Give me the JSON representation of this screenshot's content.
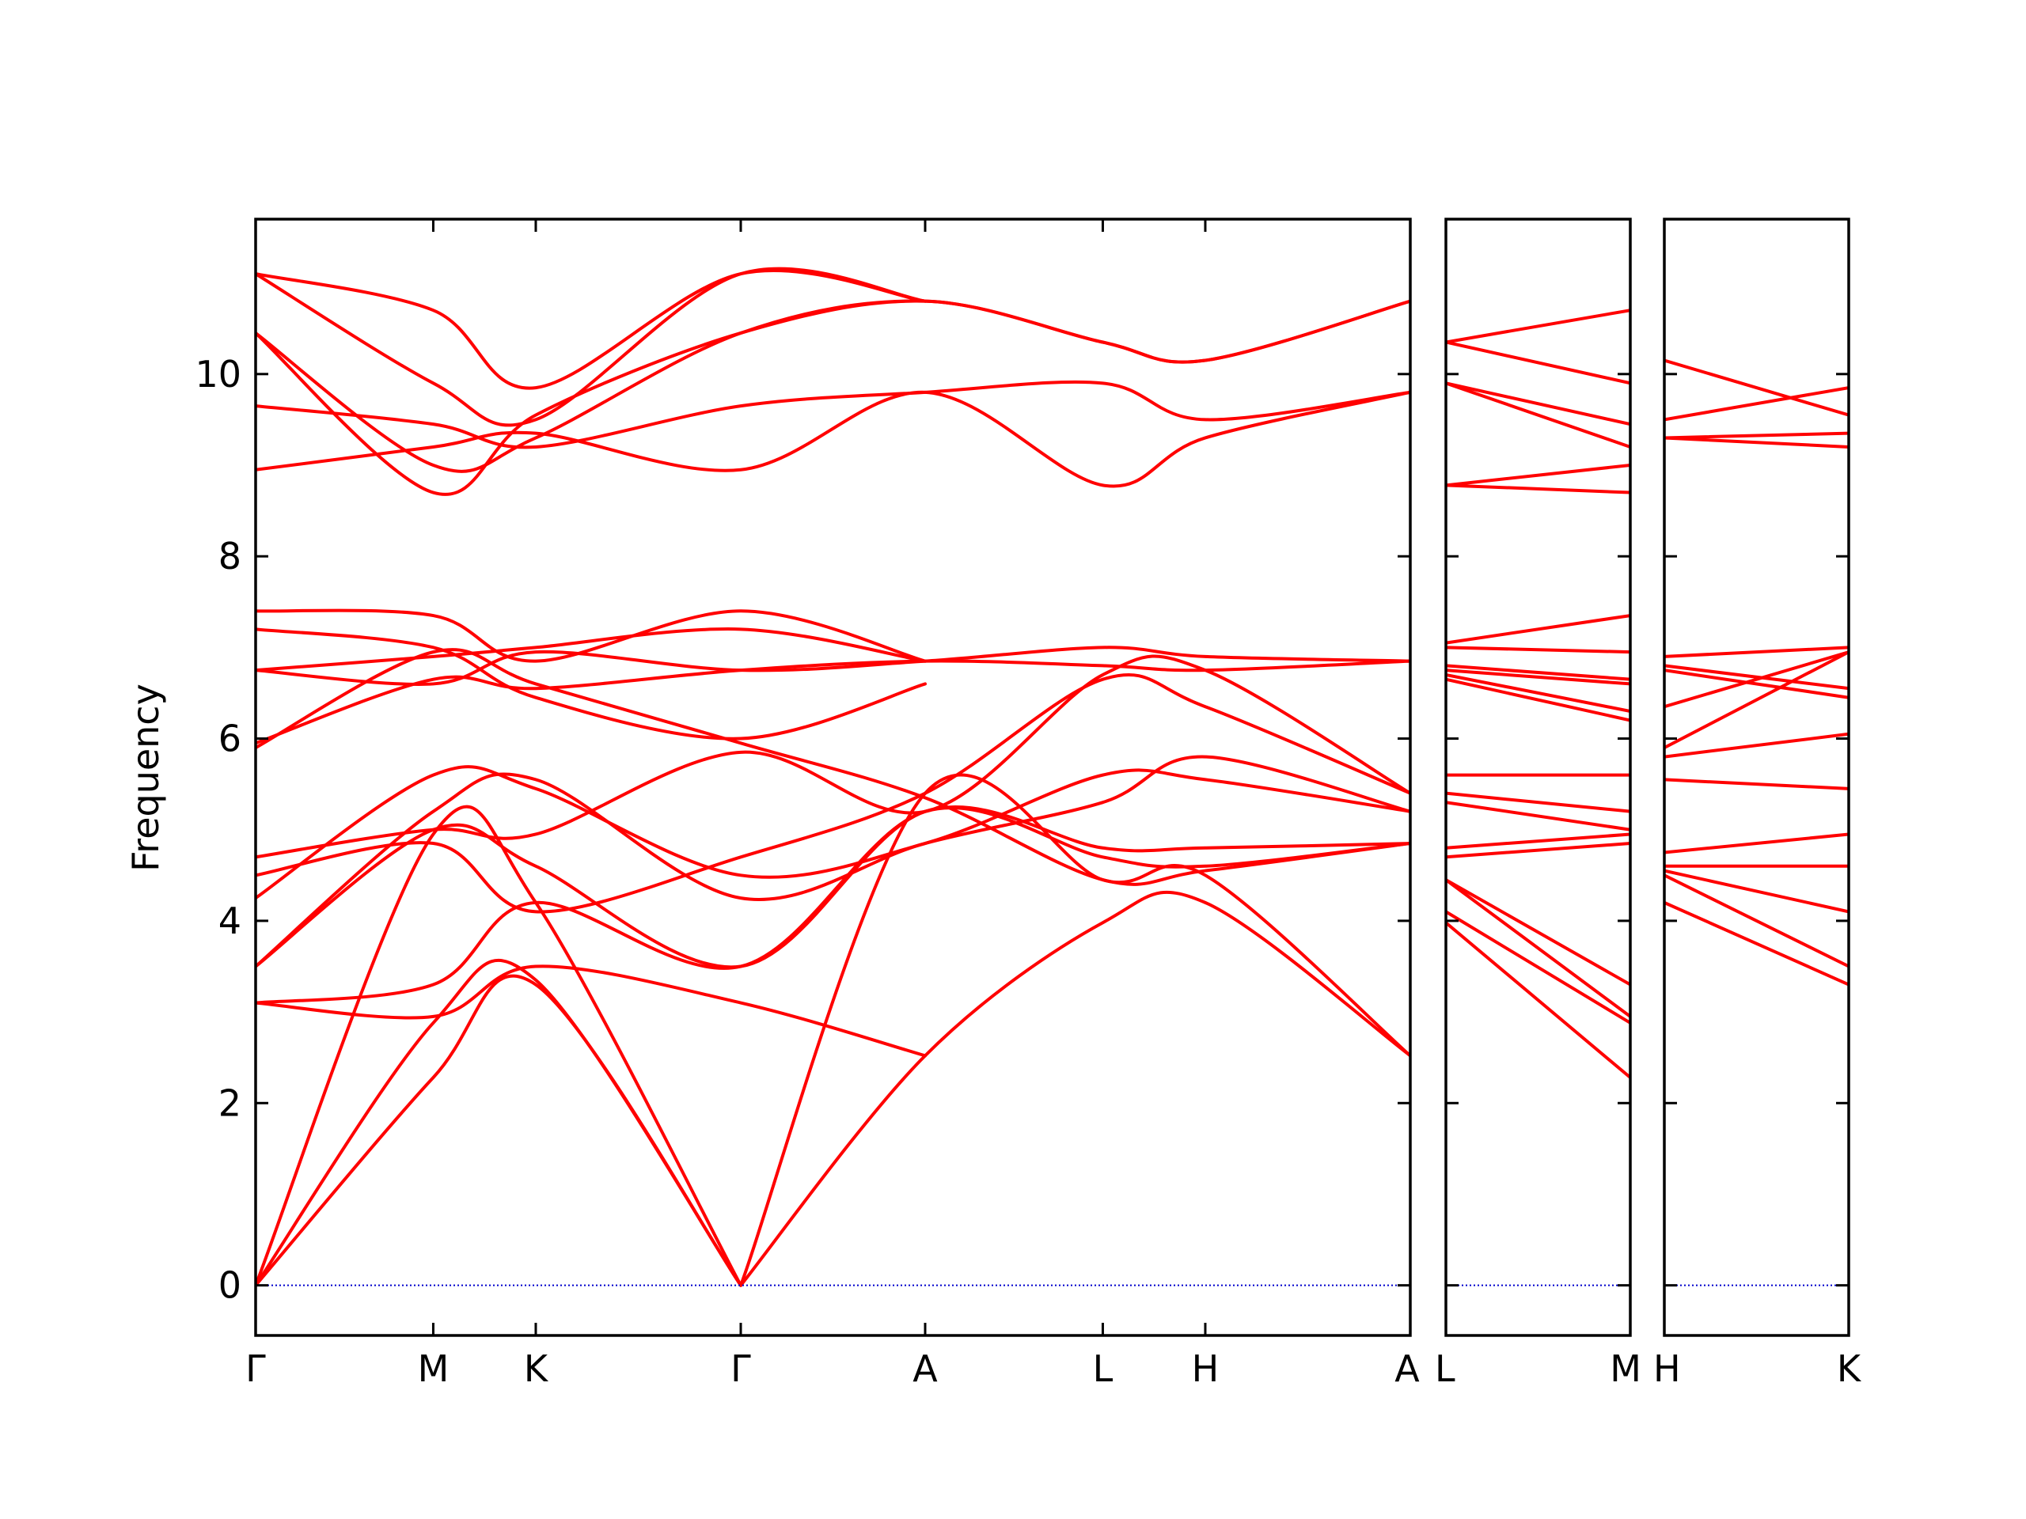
{
  "chart_data": {
    "type": "line",
    "ylabel": "Frequency",
    "ylim": [
      -0.55,
      11.7
    ],
    "yticks": [
      0,
      2,
      4,
      6,
      8,
      10
    ],
    "line_color": "#ff0000",
    "zero_line_color": "#0000cc",
    "panels": [
      {
        "id": "main",
        "xlim": [
          0,
          8
        ],
        "x_ticks": [
          {
            "x": 0,
            "label": "Γ"
          },
          {
            "x": 1,
            "label": "M"
          },
          {
            "x": 1.577,
            "label": "K"
          },
          {
            "x": 2.731,
            "label": "Γ"
          },
          {
            "x": 3.769,
            "label": "A"
          },
          {
            "x": 4.769,
            "label": "L"
          },
          {
            "x": 5.346,
            "label": "H"
          },
          {
            "x": 6.5,
            "label": "A"
          }
        ],
        "bands": [
          {
            "x": [
              0,
              1,
              1.577,
              2.731
            ],
            "y": [
              0,
              2.28,
              3.3,
              0
            ]
          },
          {
            "x": [
              0,
              1,
              1.577,
              2.731
            ],
            "y": [
              0,
              2.88,
              3.35,
              0
            ]
          },
          {
            "x": [
              0,
              1,
              1.577,
              2.731
            ],
            "y": [
              0,
              4.95,
              4.2,
              0
            ]
          },
          {
            "x": [
              2.731,
              3.769,
              4.769,
              5.346,
              6.5
            ],
            "y": [
              0,
              2.52,
              3.98,
              4.2,
              2.52
            ]
          },
          {
            "x": [
              2.731,
              3.769,
              4.769,
              5.346,
              6.5
            ],
            "y": [
              0,
              5.4,
              4.45,
              4.5,
              2.52
            ]
          },
          {
            "x": [
              0,
              1,
              1.577,
              2.731,
              3.769
            ],
            "y": [
              3.1,
              2.95,
              3.5,
              3.1,
              2.52
            ]
          },
          {
            "x": [
              0,
              1,
              1.577,
              2.731,
              3.769,
              4.769,
              5.346,
              6.5
            ],
            "y": [
              3.1,
              3.3,
              4.2,
              3.5,
              5.2,
              4.7,
              4.6,
              4.85
            ]
          },
          {
            "x": [
              0,
              1,
              1.577,
              2.731,
              3.769,
              4.769,
              5.346,
              6.5
            ],
            "y": [
              3.5,
              5.0,
              4.6,
              3.5,
              5.2,
              4.8,
              4.8,
              4.85
            ]
          },
          {
            "x": [
              0,
              1,
              1.577,
              2.731,
              3.769,
              4.769,
              5.346,
              6.5
            ],
            "y": [
              3.5,
              5.2,
              5.55,
              4.25,
              4.85,
              5.3,
              5.8,
              5.2
            ]
          },
          {
            "x": [
              0,
              1,
              1.577,
              2.731,
              3.769,
              4.769,
              5.346,
              6.5
            ],
            "y": [
              4.25,
              5.6,
              5.45,
              4.5,
              4.85,
              5.6,
              5.55,
              5.2
            ]
          },
          {
            "x": [
              0,
              1,
              1.577,
              2.731,
              3.769,
              4.769,
              5.346,
              6.5
            ],
            "y": [
              4.5,
              4.85,
              4.1,
              4.7,
              5.4,
              6.65,
              6.35,
              5.4
            ]
          },
          {
            "x": [
              0,
              1,
              1.577,
              2.731,
              3.769,
              4.769,
              5.346,
              6.5
            ],
            "y": [
              4.7,
              5.0,
              4.95,
              5.85,
              5.2,
              6.7,
              6.75,
              5.4
            ]
          },
          {
            "x": [
              0,
              1,
              1.577,
              2.731,
              3.769,
              4.769,
              5.346,
              6.5
            ],
            "y": [
              5.9,
              6.95,
              6.6,
              5.95,
              5.35,
              4.45,
              4.55,
              4.85
            ]
          },
          {
            "x": [
              0,
              1,
              1.577,
              2.731,
              3.769,
              4.769,
              5.346,
              6.5
            ],
            "y": [
              5.95,
              6.65,
              6.55,
              6.75,
              6.85,
              6.8,
              6.75,
              6.85
            ]
          },
          {
            "x": [
              0,
              1,
              1.577,
              2.731,
              3.769,
              4.769,
              5.346,
              6.5
            ],
            "y": [
              6.75,
              6.6,
              6.95,
              6.75,
              6.85,
              7.0,
              6.9,
              6.85
            ]
          },
          {
            "x": [
              0,
              1,
              1.577,
              2.731,
              3.769
            ],
            "y": [
              6.75,
              6.9,
              7.0,
              7.2,
              6.85
            ]
          },
          {
            "x": [
              0,
              1,
              1.577,
              2.731,
              3.769
            ],
            "y": [
              7.2,
              7.0,
              6.45,
              6.0,
              6.6
            ]
          },
          {
            "x": [
              0,
              1,
              1.577,
              2.731,
              3.769
            ],
            "y": [
              7.4,
              7.35,
              6.85,
              7.4,
              6.85
            ]
          },
          {
            "x": [
              0,
              1,
              1.577,
              2.731,
              3.769,
              4.769,
              5.346,
              6.5
            ],
            "y": [
              8.95,
              9.2,
              9.35,
              8.95,
              9.8,
              8.78,
              9.3,
              9.8
            ]
          },
          {
            "x": [
              0,
              1,
              1.577,
              2.731,
              3.769,
              4.769,
              5.346,
              6.5
            ],
            "y": [
              9.65,
              9.45,
              9.2,
              9.65,
              9.8,
              9.9,
              9.5,
              9.8
            ]
          },
          {
            "x": [
              0,
              1,
              1.577,
              2.731,
              3.769,
              4.769,
              5.346,
              6.5
            ],
            "y": [
              10.45,
              8.7,
              9.55,
              10.45,
              10.8,
              10.35,
              10.15,
              10.8
            ]
          },
          {
            "x": [
              0,
              1,
              1.577,
              2.731,
              3.769,
              4.769,
              5.346,
              6.5
            ],
            "y": [
              10.45,
              9.0,
              9.3,
              10.45,
              10.8,
              10.35,
              10.15,
              10.8
            ]
          },
          {
            "x": [
              0,
              1,
              1.577,
              2.731,
              3.769
            ],
            "y": [
              11.1,
              9.9,
              9.5,
              11.1,
              10.8
            ]
          },
          {
            "x": [
              0,
              1,
              1.577,
              2.731,
              3.769
            ],
            "y": [
              11.1,
              10.7,
              9.85,
              11.1,
              10.8
            ]
          }
        ]
      },
      {
        "id": "lm",
        "xlim": [
          0,
          1
        ],
        "x_ticks": [
          {
            "x": 0,
            "label": "L"
          },
          {
            "x": 1,
            "label": "M"
          }
        ],
        "bands": [
          {
            "x": [
              0,
              1
            ],
            "y": [
              3.98,
              2.28
            ]
          },
          {
            "x": [
              0,
              1
            ],
            "y": [
              4.1,
              2.88
            ]
          },
          {
            "x": [
              0,
              1
            ],
            "y": [
              4.45,
              2.95
            ]
          },
          {
            "x": [
              0,
              1
            ],
            "y": [
              4.45,
              3.3
            ]
          },
          {
            "x": [
              0,
              1
            ],
            "y": [
              4.7,
              4.85
            ]
          },
          {
            "x": [
              0,
              1
            ],
            "y": [
              4.8,
              4.95
            ]
          },
          {
            "x": [
              0,
              1
            ],
            "y": [
              5.3,
              5.0
            ]
          },
          {
            "x": [
              0,
              1
            ],
            "y": [
              5.4,
              5.2
            ]
          },
          {
            "x": [
              0,
              1
            ],
            "y": [
              5.6,
              5.6
            ]
          },
          {
            "x": [
              0,
              1
            ],
            "y": [
              6.65,
              6.2
            ]
          },
          {
            "x": [
              0,
              1
            ],
            "y": [
              6.7,
              6.3
            ]
          },
          {
            "x": [
              0,
              1
            ],
            "y": [
              6.75,
              6.6
            ]
          },
          {
            "x": [
              0,
              1
            ],
            "y": [
              6.8,
              6.65
            ]
          },
          {
            "x": [
              0,
              1
            ],
            "y": [
              7.0,
              6.95
            ]
          },
          {
            "x": [
              0,
              1
            ],
            "y": [
              7.05,
              7.35
            ]
          },
          {
            "x": [
              0,
              1
            ],
            "y": [
              8.78,
              8.7
            ]
          },
          {
            "x": [
              0,
              1
            ],
            "y": [
              8.78,
              9.0
            ]
          },
          {
            "x": [
              0,
              1
            ],
            "y": [
              9.9,
              9.2
            ]
          },
          {
            "x": [
              0,
              1
            ],
            "y": [
              9.9,
              9.45
            ]
          },
          {
            "x": [
              0,
              1
            ],
            "y": [
              10.35,
              9.9
            ]
          },
          {
            "x": [
              0,
              1
            ],
            "y": [
              10.35,
              10.7
            ]
          }
        ]
      },
      {
        "id": "hk",
        "xlim": [
          0,
          1
        ],
        "x_ticks": [
          {
            "x": 0,
            "label": "H"
          },
          {
            "x": 1,
            "label": "K"
          }
        ],
        "bands": [
          {
            "x": [
              0,
              1
            ],
            "y": [
              4.2,
              3.3
            ]
          },
          {
            "x": [
              0,
              1
            ],
            "y": [
              4.5,
              3.5
            ]
          },
          {
            "x": [
              0,
              1
            ],
            "y": [
              4.55,
              4.1
            ]
          },
          {
            "x": [
              0,
              1
            ],
            "y": [
              4.6,
              4.6
            ]
          },
          {
            "x": [
              0,
              1
            ],
            "y": [
              4.75,
              4.95
            ]
          },
          {
            "x": [
              0,
              1
            ],
            "y": [
              5.55,
              5.45
            ]
          },
          {
            "x": [
              0,
              1
            ],
            "y": [
              5.8,
              6.05
            ]
          },
          {
            "x": [
              0,
              1
            ],
            "y": [
              5.9,
              6.95
            ]
          },
          {
            "x": [
              0,
              1
            ],
            "y": [
              6.35,
              6.95
            ]
          },
          {
            "x": [
              0,
              1
            ],
            "y": [
              6.75,
              6.45
            ]
          },
          {
            "x": [
              0,
              1
            ],
            "y": [
              6.8,
              6.55
            ]
          },
          {
            "x": [
              0,
              1
            ],
            "y": [
              6.9,
              7.0
            ]
          },
          {
            "x": [
              0,
              1
            ],
            "y": [
              9.3,
              9.2
            ]
          },
          {
            "x": [
              0,
              1
            ],
            "y": [
              9.3,
              9.35
            ]
          },
          {
            "x": [
              0,
              1
            ],
            "y": [
              9.5,
              9.85
            ]
          },
          {
            "x": [
              0,
              1
            ],
            "y": [
              10.15,
              9.55
            ]
          }
        ]
      }
    ]
  }
}
